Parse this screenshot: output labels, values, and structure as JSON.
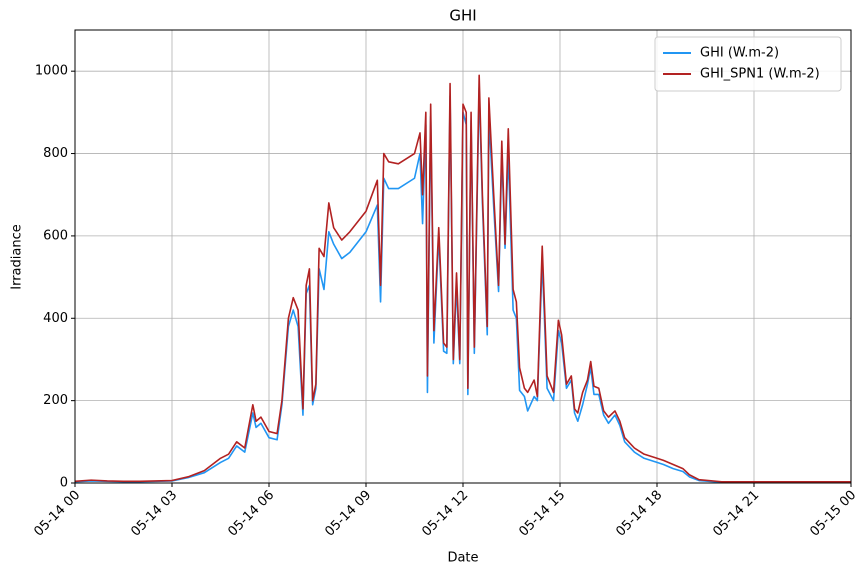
{
  "chart_data": {
    "type": "line",
    "title": "GHI",
    "x_label": "Date",
    "y_label": "Irradiance",
    "x": [
      0,
      0.5,
      1,
      1.5,
      2,
      2.5,
      3,
      3.5,
      4,
      4.5,
      4.75,
      5,
      5.25,
      5.5,
      5.6,
      5.75,
      6,
      6.25,
      6.4,
      6.6,
      6.75,
      6.9,
      7.05,
      7.15,
      7.25,
      7.35,
      7.45,
      7.55,
      7.7,
      7.85,
      8,
      8.25,
      8.5,
      9,
      9.35,
      9.45,
      9.55,
      9.7,
      10,
      10.5,
      10.67,
      10.75,
      10.85,
      10.9,
      11,
      11.1,
      11.25,
      11.4,
      11.5,
      11.6,
      11.7,
      11.8,
      11.9,
      12,
      12.1,
      12.15,
      12.25,
      12.35,
      12.5,
      12.6,
      12.75,
      12.8,
      12.95,
      13.1,
      13.2,
      13.3,
      13.4,
      13.55,
      13.65,
      13.75,
      13.9,
      14,
      14.2,
      14.3,
      14.45,
      14.6,
      14.8,
      14.95,
      15.05,
      15.2,
      15.35,
      15.45,
      15.55,
      15.7,
      15.85,
      15.95,
      16.05,
      16.2,
      16.35,
      16.5,
      16.7,
      16.85,
      17,
      17.3,
      17.6,
      18,
      18.2,
      18.5,
      18.8,
      19,
      19.3,
      20,
      21,
      22,
      23,
      24
    ],
    "series": [
      {
        "name": "GHI (W.m-2)",
        "color": "#2196f3",
        "values": [
          3,
          5,
          4,
          3,
          3,
          4,
          5,
          13,
          25,
          50,
          60,
          90,
          75,
          170,
          135,
          145,
          110,
          105,
          190,
          380,
          420,
          380,
          165,
          460,
          480,
          190,
          230,
          520,
          470,
          610,
          580,
          545,
          560,
          610,
          675,
          440,
          740,
          715,
          715,
          740,
          800,
          630,
          870,
          220,
          890,
          340,
          600,
          320,
          315,
          940,
          290,
          480,
          290,
          900,
          870,
          215,
          880,
          315,
          960,
          680,
          360,
          890,
          670,
          465,
          800,
          570,
          800,
          420,
          400,
          225,
          210,
          175,
          210,
          200,
          540,
          230,
          200,
          370,
          340,
          230,
          250,
          170,
          150,
          190,
          240,
          280,
          215,
          215,
          165,
          145,
          165,
          140,
          100,
          75,
          60,
          50,
          45,
          35,
          28,
          15,
          6,
          2,
          3,
          3,
          3,
          3
        ]
      },
      {
        "name": "GHI_SPN1 (W.m-2)",
        "color": "#b22222",
        "values": [
          4,
          7,
          5,
          4,
          4,
          5,
          6,
          15,
          30,
          60,
          70,
          100,
          85,
          190,
          150,
          160,
          125,
          120,
          200,
          400,
          450,
          420,
          180,
          480,
          520,
          200,
          240,
          570,
          550,
          680,
          620,
          590,
          610,
          660,
          735,
          480,
          800,
          780,
          775,
          800,
          850,
          700,
          900,
          260,
          920,
          370,
          620,
          340,
          330,
          970,
          300,
          510,
          300,
          920,
          900,
          230,
          900,
          330,
          990,
          700,
          380,
          935,
          700,
          480,
          830,
          580,
          860,
          470,
          440,
          280,
          230,
          220,
          250,
          210,
          575,
          260,
          220,
          395,
          360,
          240,
          260,
          180,
          170,
          220,
          250,
          295,
          235,
          230,
          175,
          160,
          175,
          150,
          110,
          85,
          70,
          60,
          55,
          45,
          35,
          20,
          8,
          3,
          3,
          3,
          3,
          3
        ]
      }
    ],
    "xlim": [
      0,
      24
    ],
    "xticks": [
      {
        "value": 0,
        "label": "05-14 00"
      },
      {
        "value": 3,
        "label": "05-14 03"
      },
      {
        "value": 6,
        "label": "05-14 06"
      },
      {
        "value": 9,
        "label": "05-14 09"
      },
      {
        "value": 12,
        "label": "05-14 12"
      },
      {
        "value": 15,
        "label": "05-14 15"
      },
      {
        "value": 18,
        "label": "05-14 18"
      },
      {
        "value": 21,
        "label": "05-14 21"
      },
      {
        "value": 24,
        "label": "05-15 00"
      }
    ],
    "ylim": [
      0,
      1100
    ],
    "yticks": [
      0,
      200,
      400,
      600,
      800,
      1000
    ],
    "grid": true,
    "legend": "upper right"
  }
}
